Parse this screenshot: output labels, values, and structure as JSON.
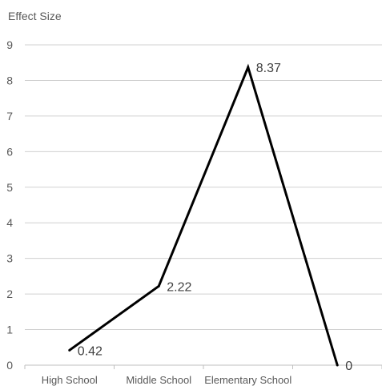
{
  "chart_data": {
    "type": "line",
    "title": "",
    "ylabel": "Effect Size",
    "xlabel": "",
    "categories": [
      "High School",
      "Middle School",
      "Elementary School",
      ""
    ],
    "series": [
      {
        "values": [
          0.42,
          2.22,
          8.37,
          0
        ]
      }
    ],
    "data_labels": [
      "0.42",
      "2.22",
      "8.37",
      "0"
    ],
    "ylim": [
      0,
      9
    ],
    "yticks": [
      0,
      1,
      2,
      3,
      4,
      5,
      6,
      7,
      8,
      9
    ],
    "grid": true,
    "legend": "none",
    "line_color": "#000000"
  }
}
